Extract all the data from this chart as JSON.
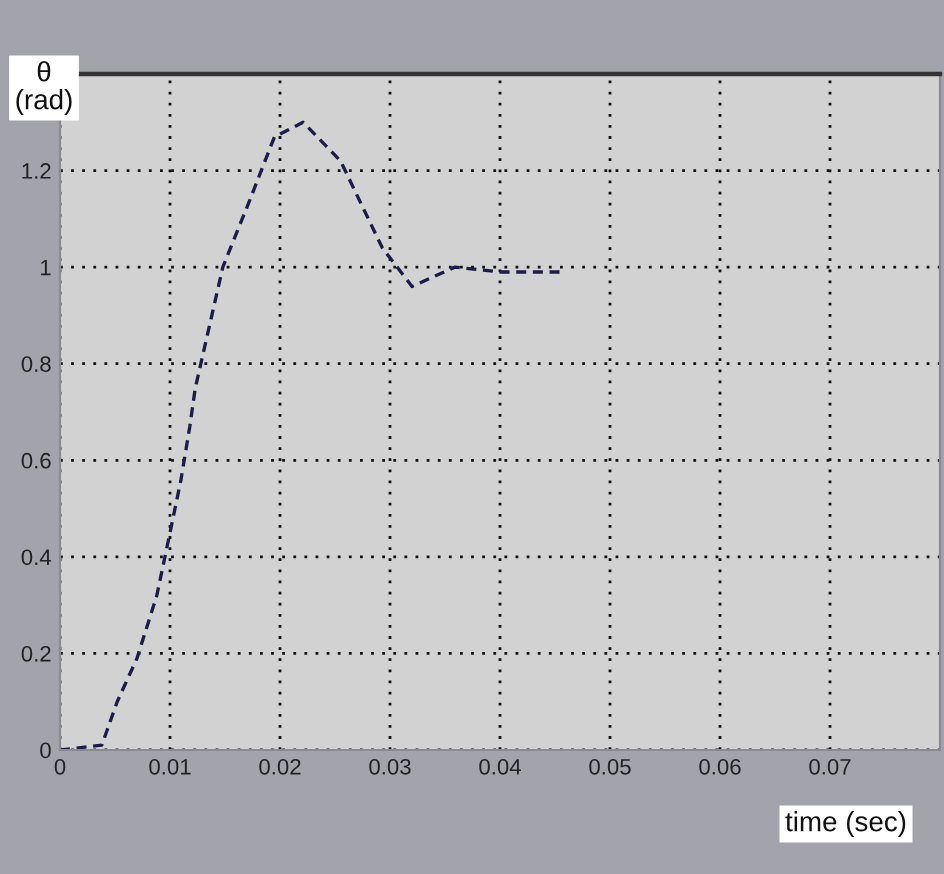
{
  "chart_data": {
    "type": "line",
    "xlabel": "time (sec)",
    "ylabel": "θ\n(rad)",
    "x": [
      0,
      0.0038,
      0.0052,
      0.007,
      0.0088,
      0.01,
      0.011,
      0.0118,
      0.0123,
      0.0148,
      0.0171,
      0.0195,
      0.0221,
      0.0255,
      0.0293,
      0.032,
      0.0359,
      0.04,
      0.0457
    ],
    "series": [
      {
        "color": "#1c1c4a",
        "values": [
          0,
          0.01,
          0.1,
          0.19,
          0.32,
          0.45,
          0.56,
          0.67,
          0.75,
          1.0,
          1.13,
          1.27,
          1.3,
          1.22,
          1.04,
          0.96,
          1.0,
          0.99,
          0.99
        ]
      }
    ],
    "xlim": [
      0,
      0.08
    ],
    "xticks": [
      0,
      0.01,
      0.02,
      0.03,
      0.04,
      0.05,
      0.06,
      0.07
    ],
    "ylim": [
      0,
      1.4
    ],
    "yticks": [
      0,
      0.2,
      0.4,
      0.6,
      0.8,
      1,
      1.2
    ],
    "grid": true,
    "line_style": "dashed",
    "marker": "none"
  }
}
